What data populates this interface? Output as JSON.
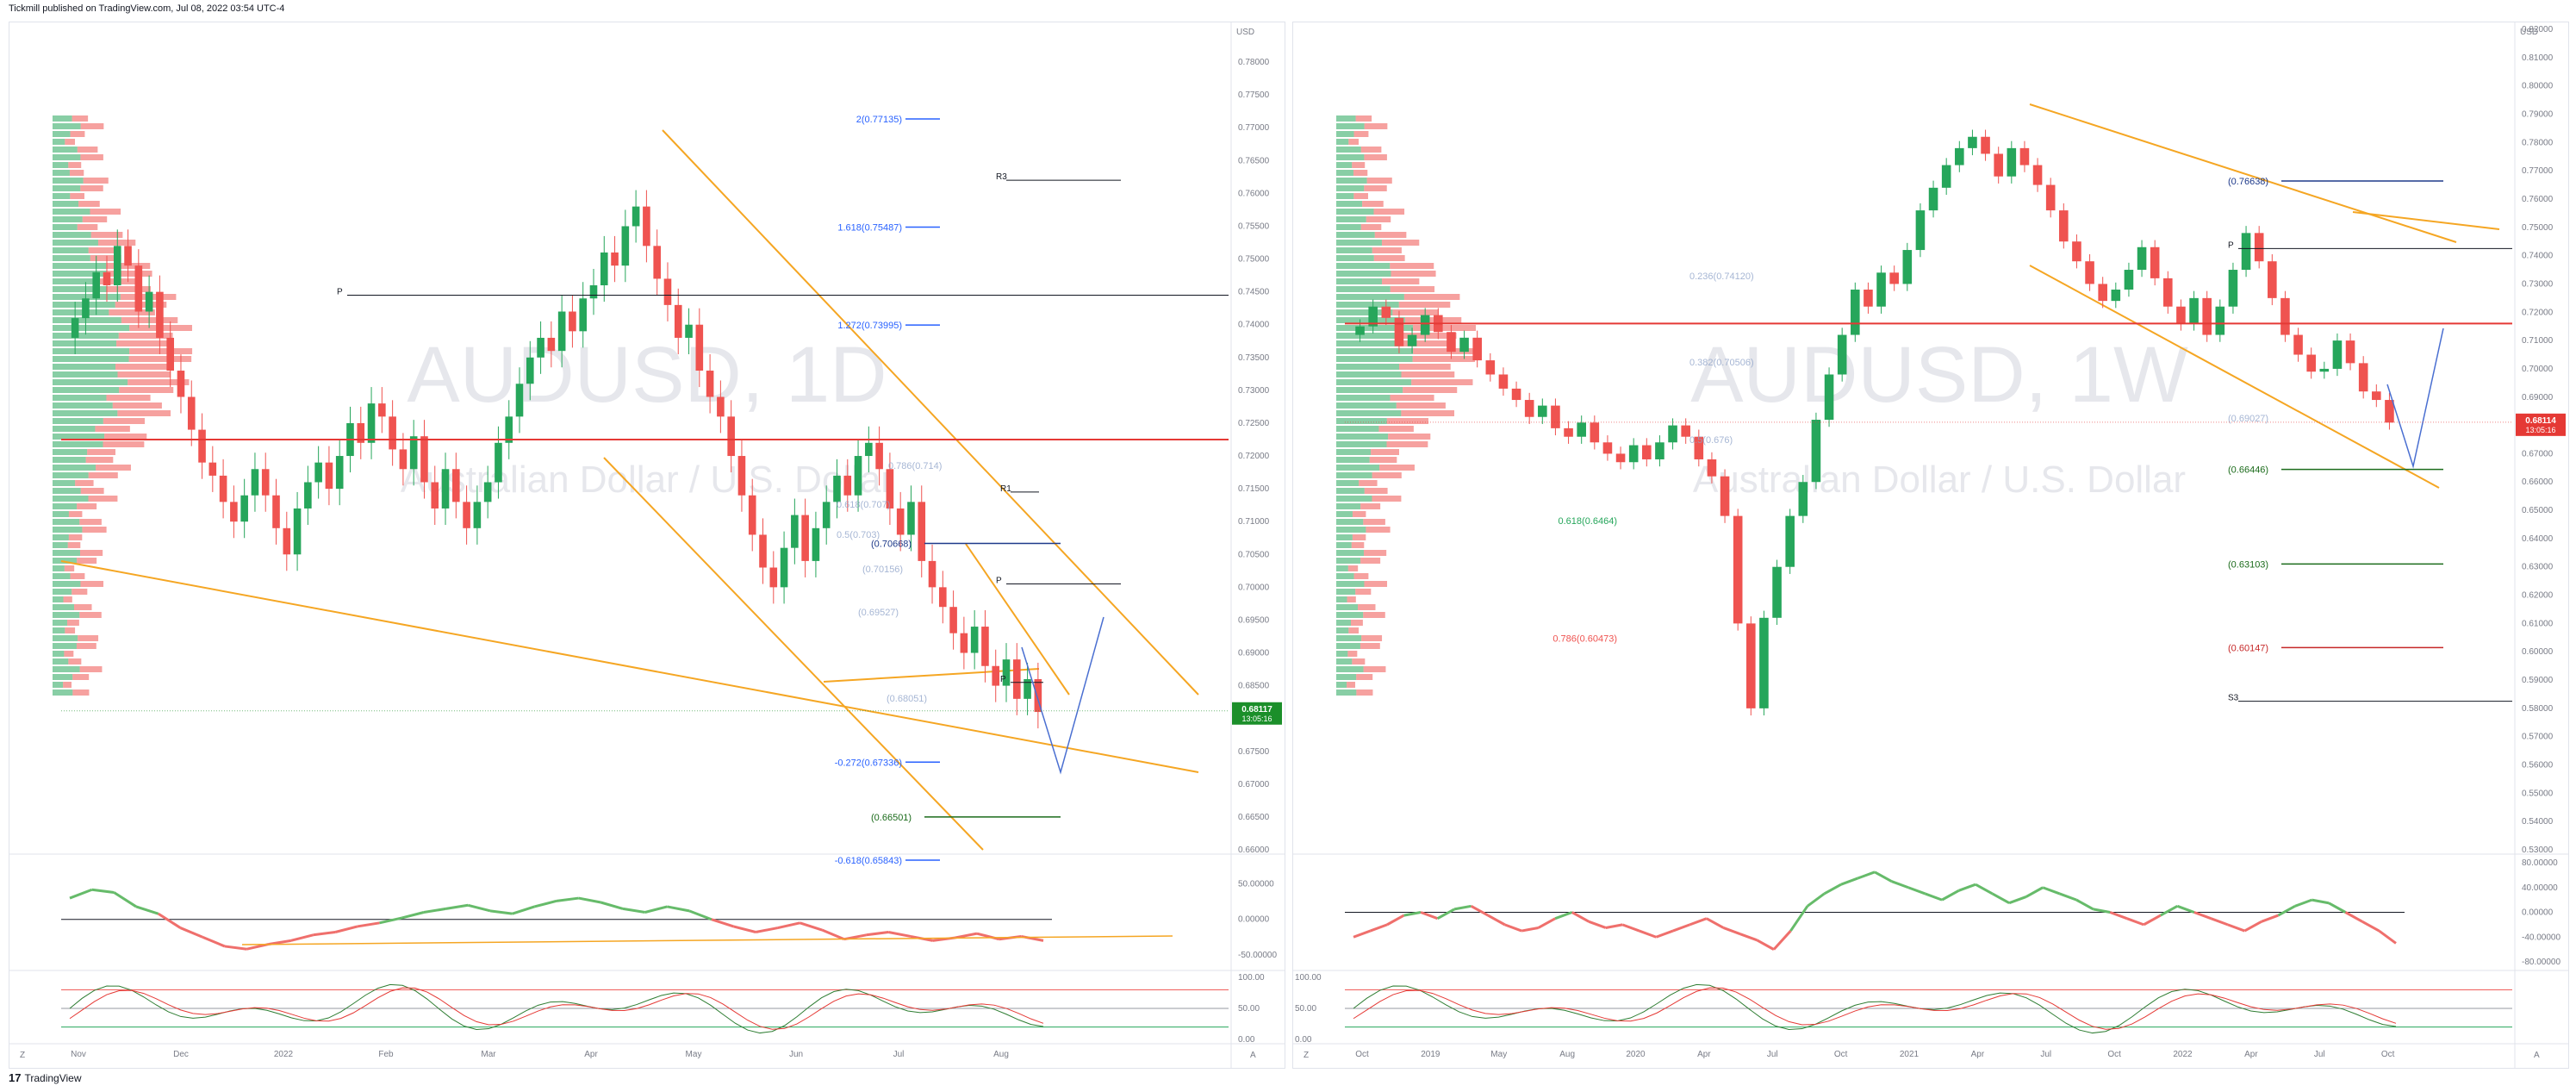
{
  "header": {
    "publisher": "Tickmill published on TradingView.com, Jul 08, 2022 03:54 UTC-4"
  },
  "footer": {
    "brand": "TradingView",
    "logo": "17"
  },
  "colors": {
    "up": "#26a65b",
    "down": "#ef5350",
    "channel": "#f5a623",
    "fib_blue": "#2962ff",
    "pivot": "#131722",
    "price_tag_green": "#1b8f2a",
    "price_tag_red": "#e53935"
  },
  "chart_data": [
    {
      "type": "candlestick",
      "symbol_watermark": "AUDUSD, 1D",
      "subtitle_watermark": "Australian Dollar / U.S. Dollar",
      "currency": "USD",
      "ylim": [
        0.66,
        0.785
      ],
      "y_ticks": [
        "0.78000",
        "0.77500",
        "0.77000",
        "0.76500",
        "0.76000",
        "0.75500",
        "0.75000",
        "0.74500",
        "0.74000",
        "0.73500",
        "0.73000",
        "0.72500",
        "0.72000",
        "0.71500",
        "0.71000",
        "0.70500",
        "0.70000",
        "0.69500",
        "0.69000",
        "0.68500",
        "0.68000",
        "0.67500",
        "0.67000",
        "0.66500",
        "0.66000"
      ],
      "x_ticks": [
        "Nov",
        "Dec",
        "2022",
        "Feb",
        "Mar",
        "Apr",
        "May",
        "Jun",
        "Jul",
        "Aug"
      ],
      "last_price": "0.68117",
      "countdown": "13:05:16",
      "close_series": [
        0.741,
        0.744,
        0.748,
        0.746,
        0.752,
        0.749,
        0.742,
        0.745,
        0.738,
        0.733,
        0.729,
        0.724,
        0.719,
        0.717,
        0.713,
        0.71,
        0.714,
        0.718,
        0.714,
        0.709,
        0.705,
        0.712,
        0.716,
        0.719,
        0.715,
        0.72,
        0.725,
        0.722,
        0.728,
        0.726,
        0.721,
        0.718,
        0.723,
        0.716,
        0.712,
        0.718,
        0.713,
        0.709,
        0.713,
        0.716,
        0.722,
        0.726,
        0.731,
        0.735,
        0.738,
        0.736,
        0.742,
        0.739,
        0.744,
        0.746,
        0.751,
        0.749,
        0.755,
        0.758,
        0.752,
        0.747,
        0.743,
        0.738,
        0.74,
        0.733,
        0.729,
        0.726,
        0.72,
        0.714,
        0.708,
        0.703,
        0.7,
        0.706,
        0.711,
        0.704,
        0.709,
        0.713,
        0.717,
        0.714,
        0.72,
        0.722,
        0.718,
        0.712,
        0.708,
        0.713,
        0.704,
        0.7,
        0.697,
        0.693,
        0.69,
        0.694,
        0.688,
        0.685,
        0.689,
        0.683,
        0.686,
        0.681
      ],
      "fib_levels": [
        {
          "label": "2(0.77135)",
          "value": 0.77135
        },
        {
          "label": "1.618(0.75487)",
          "value": 0.75487
        },
        {
          "label": "1.272(0.73995)",
          "value": 0.73995
        },
        {
          "label": "-0.272(0.67336)",
          "value": 0.67336
        },
        {
          "label": "-0.618(0.65843)",
          "value": 0.65843
        }
      ],
      "faint_levels": [
        "0.786(0.714)",
        "0.618(0.707)",
        "0.5(0.703)",
        "(0.70156)",
        "(0.69527)",
        "(0.68051)"
      ],
      "marked_levels": [
        {
          "label": "(0.70668)",
          "value": 0.70668
        },
        {
          "label": "(0.66501)",
          "value": 0.66501
        }
      ],
      "pivots": [
        {
          "label": "R3",
          "value": 0.762
        },
        {
          "label": "P",
          "value": 0.7445
        },
        {
          "label": "R1",
          "value": 0.7145
        },
        {
          "label": "P",
          "value": 0.7005
        },
        {
          "label": "P",
          "value": 0.6855
        }
      ],
      "rsi_ticks": [
        "50.00000",
        "0.00000",
        "-50.00000"
      ],
      "stoch_ticks": [
        "100.00",
        "50.00",
        "0.00"
      ],
      "osc_series": [
        30,
        42,
        38,
        18,
        8,
        -12,
        -25,
        -38,
        -42,
        -35,
        -30,
        -22,
        -18,
        -10,
        -5,
        2,
        10,
        15,
        20,
        12,
        8,
        18,
        26,
        30,
        24,
        15,
        10,
        18,
        12,
        0,
        -10,
        -18,
        -12,
        -5,
        -15,
        -28,
        -22,
        -18,
        -24,
        -30,
        -26,
        -20,
        -28,
        -24,
        -30
      ]
    },
    {
      "type": "candlestick",
      "symbol_watermark": "AUDUSD, 1W",
      "subtitle_watermark": "Australian Dollar / U.S. Dollar",
      "currency": "USD",
      "ylim": [
        0.53,
        0.82
      ],
      "y_ticks": [
        "0.82000",
        "0.81000",
        "0.80000",
        "0.79000",
        "0.78000",
        "0.77000",
        "0.76000",
        "0.75000",
        "0.74000",
        "0.73000",
        "0.72000",
        "0.71000",
        "0.70000",
        "0.69000",
        "0.68000",
        "0.67000",
        "0.66000",
        "0.65000",
        "0.64000",
        "0.63000",
        "0.62000",
        "0.61000",
        "0.60000",
        "0.59000",
        "0.58000",
        "0.57000",
        "0.56000",
        "0.55000",
        "0.54000",
        "0.53000"
      ],
      "x_ticks": [
        "Oct",
        "2019",
        "May",
        "Aug",
        "2020",
        "Apr",
        "Jul",
        "Oct",
        "2021",
        "Apr",
        "Jul",
        "Oct",
        "2022",
        "Apr",
        "Jul",
        "Oct"
      ],
      "last_price": "0.68114",
      "countdown": "13:05:16",
      "close_series": [
        0.715,
        0.722,
        0.718,
        0.708,
        0.712,
        0.719,
        0.713,
        0.706,
        0.711,
        0.703,
        0.698,
        0.693,
        0.689,
        0.683,
        0.687,
        0.679,
        0.676,
        0.681,
        0.674,
        0.67,
        0.667,
        0.673,
        0.668,
        0.674,
        0.68,
        0.676,
        0.668,
        0.662,
        0.648,
        0.61,
        0.58,
        0.612,
        0.63,
        0.648,
        0.66,
        0.682,
        0.698,
        0.712,
        0.728,
        0.722,
        0.734,
        0.73,
        0.742,
        0.756,
        0.764,
        0.772,
        0.778,
        0.782,
        0.776,
        0.768,
        0.778,
        0.772,
        0.765,
        0.756,
        0.745,
        0.738,
        0.73,
        0.724,
        0.728,
        0.735,
        0.743,
        0.732,
        0.722,
        0.716,
        0.725,
        0.712,
        0.722,
        0.735,
        0.748,
        0.738,
        0.725,
        0.712,
        0.705,
        0.699,
        0.7,
        0.71,
        0.702,
        0.692,
        0.689,
        0.681
      ],
      "fib_levels": [
        {
          "label": "0.618(0.6464)",
          "value": 0.6464
        },
        {
          "label": "0.786(0.60473)",
          "value": 0.60473
        }
      ],
      "faint_levels": [
        "0.236(0.74120)",
        "0.382(0.70506)",
        "0.5(0.676)",
        "(0.69027)"
      ],
      "marked_levels": [
        {
          "label": "(0.76638)",
          "value": 0.76638
        },
        {
          "label": "(0.66446)",
          "value": 0.66446
        },
        {
          "label": "(0.63103)",
          "value": 0.63103
        },
        {
          "label": "(0.60147)",
          "value": 0.60147
        }
      ],
      "pivots": [
        {
          "label": "P",
          "value": 0.7425
        },
        {
          "label": "S3",
          "value": 0.5825
        }
      ],
      "rsi_ticks": [
        "80.00000",
        "40.00000",
        "0.00000",
        "-40.00000",
        "-80.00000"
      ],
      "stoch_ticks": [
        "100.00",
        "50.00",
        "0.00"
      ],
      "osc_series": [
        -40,
        -30,
        -20,
        -5,
        0,
        -10,
        5,
        10,
        -5,
        -20,
        -30,
        -25,
        -10,
        0,
        -15,
        -25,
        -20,
        -30,
        -40,
        -30,
        -20,
        -10,
        -25,
        -35,
        -45,
        -60,
        -30,
        10,
        30,
        45,
        55,
        65,
        50,
        40,
        30,
        20,
        35,
        45,
        30,
        15,
        25,
        40,
        30,
        20,
        5,
        0,
        -10,
        -20,
        -5,
        10,
        0,
        -10,
        -20,
        -30,
        -15,
        -5,
        10,
        20,
        15,
        0,
        -15,
        -30,
        -50
      ]
    }
  ]
}
